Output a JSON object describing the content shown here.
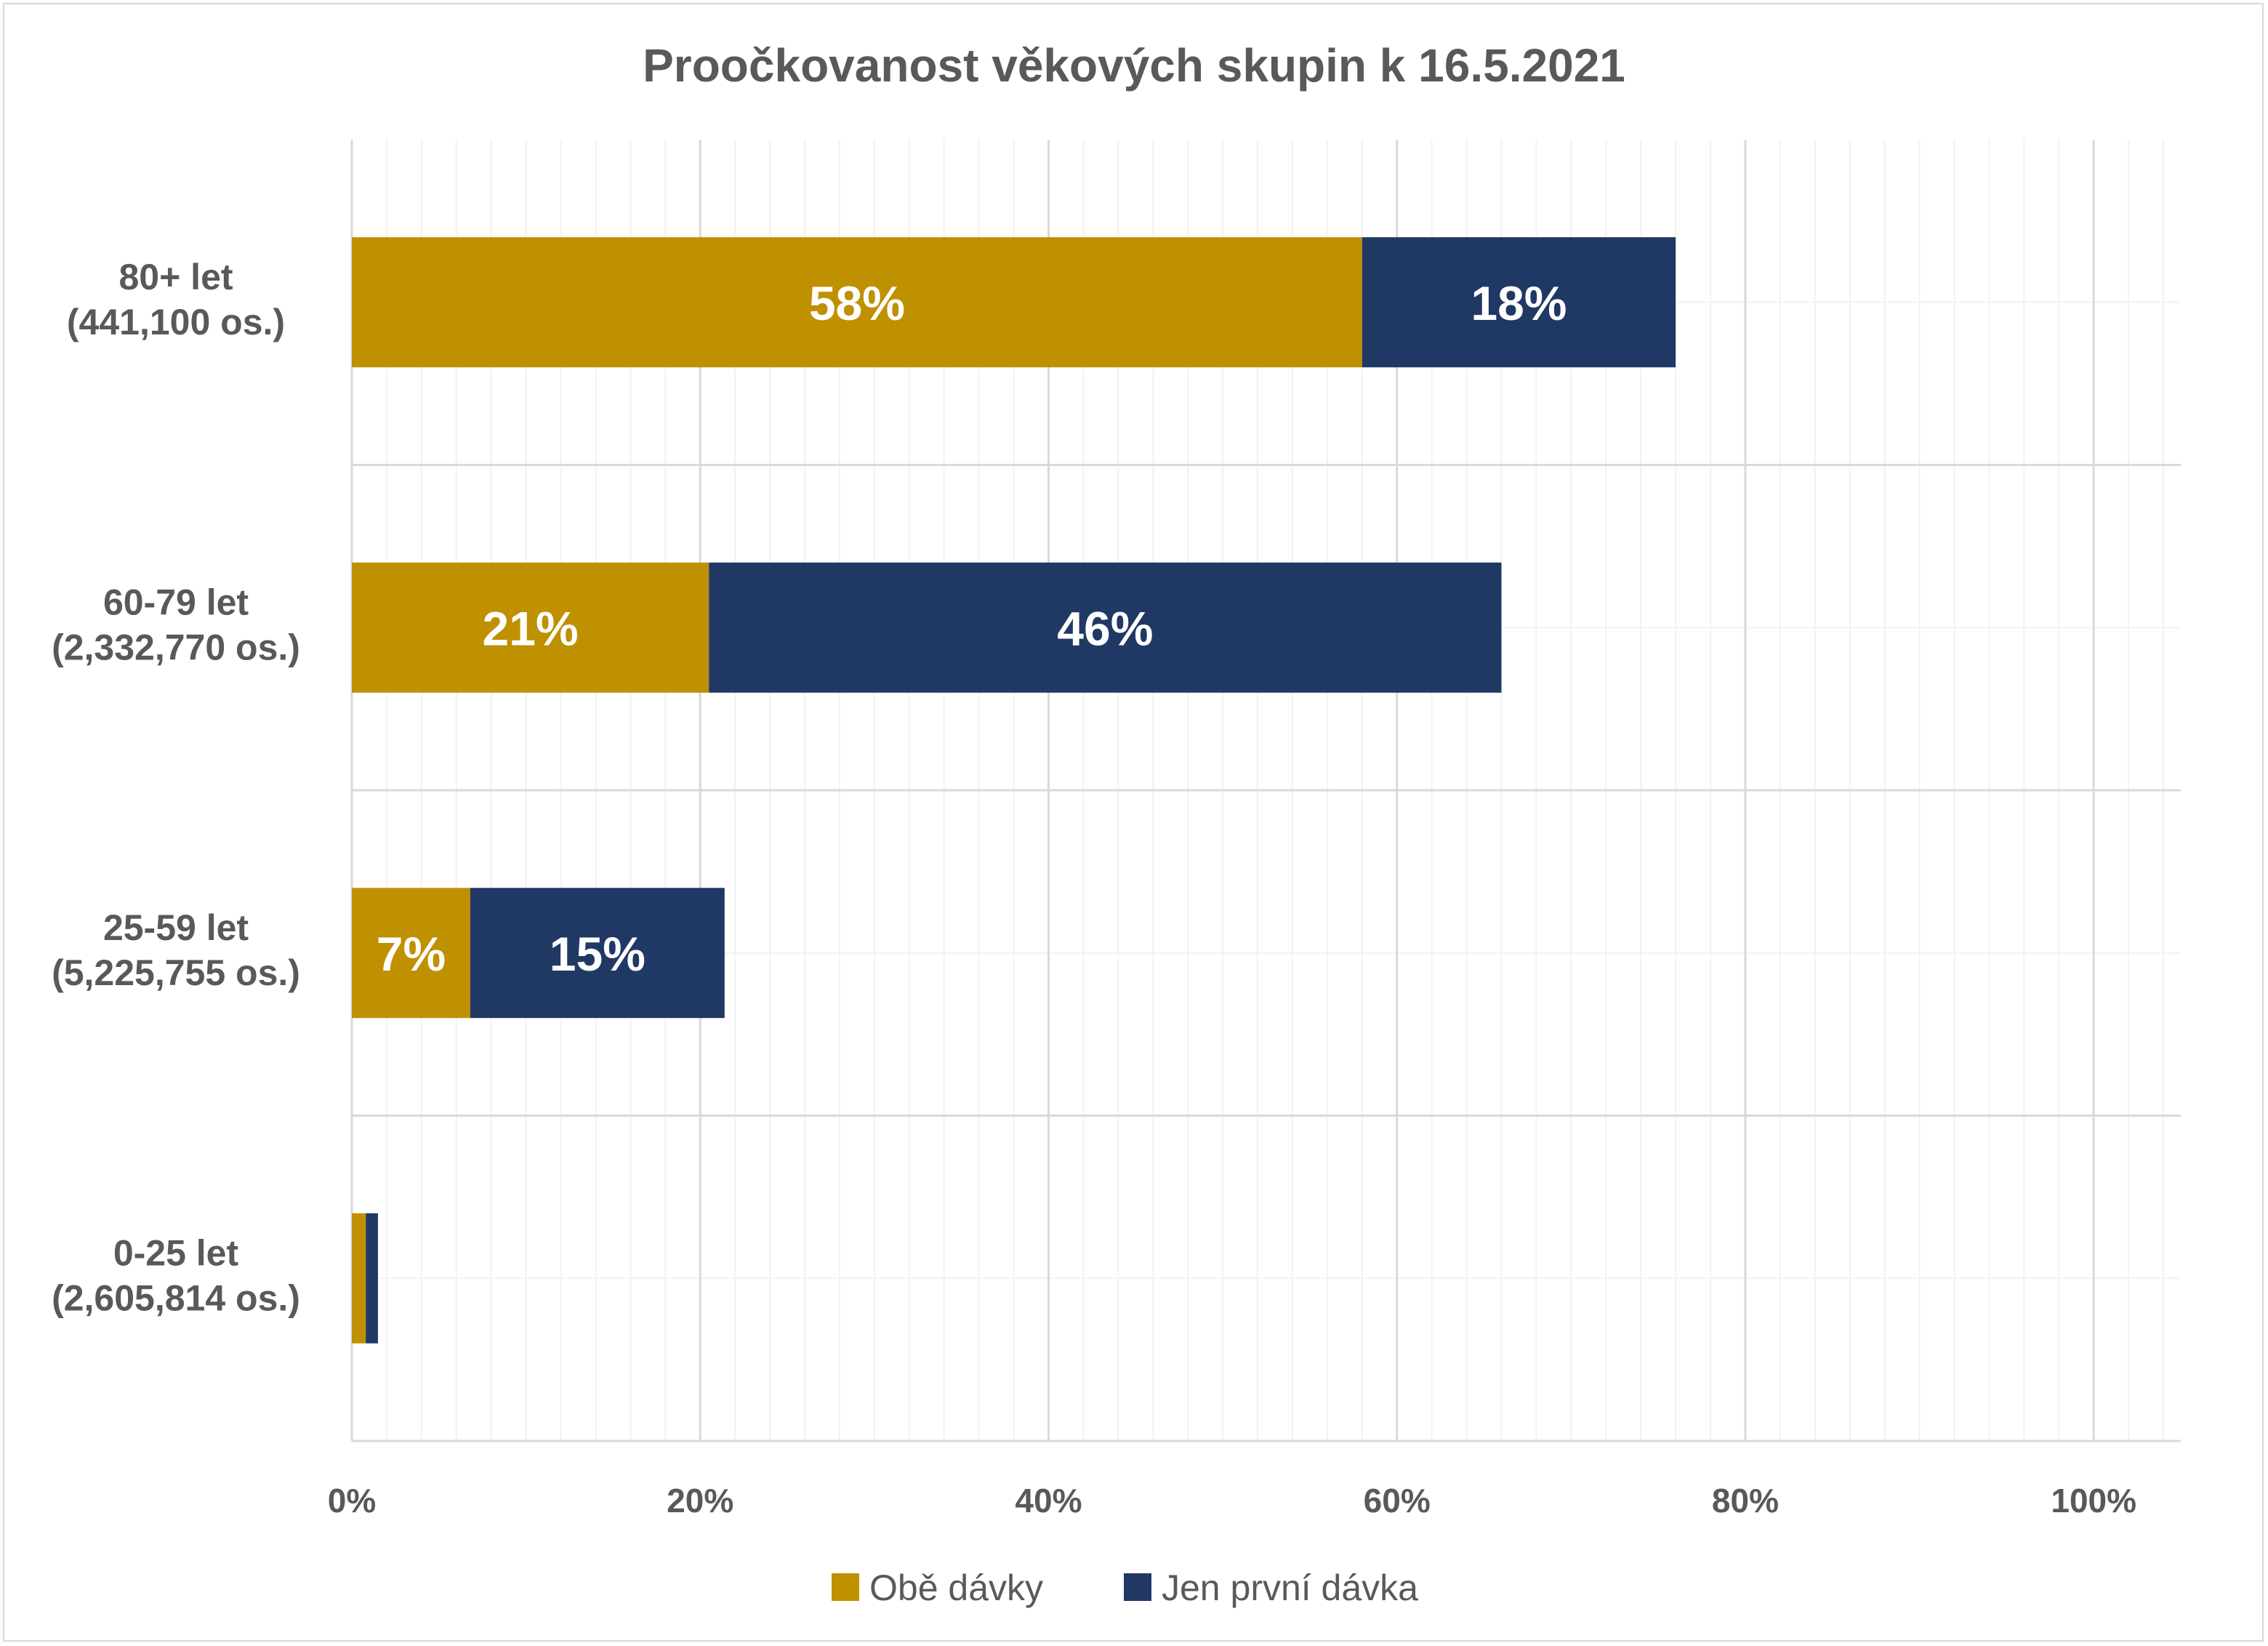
{
  "chart_data": {
    "type": "bar",
    "orientation": "horizontal",
    "stacked": true,
    "title": "Proočkovanost věkových skupin k 16.5.2021",
    "categories": [
      [
        "80+ let",
        "(441,100 os.)"
      ],
      [
        "60-79 let",
        "(2,332,770 os.)"
      ],
      [
        "25-59 let",
        "(5,225,755 os.)"
      ],
      [
        "0-25 let",
        "(2,605,814 os.)"
      ]
    ],
    "series": [
      {
        "name": "Obě dávky",
        "color": "#BF9000",
        "values": [
          0.58,
          0.205,
          0.068,
          0.008
        ],
        "labels": [
          "58%",
          "21%",
          "7%",
          ""
        ]
      },
      {
        "name": "Jen první dávka",
        "color": "#203864",
        "values": [
          0.18,
          0.455,
          0.146,
          0.007
        ],
        "labels": [
          "18%",
          "46%",
          "15%",
          ""
        ]
      }
    ],
    "xlim": [
      0,
      1.05
    ],
    "xticks": [
      0,
      0.2,
      0.4,
      0.6,
      0.8,
      1.0
    ],
    "xtick_labels": [
      "0%",
      "20%",
      "40%",
      "60%",
      "80%",
      "100%"
    ],
    "grid": "major and minor vertical",
    "legend_position": "bottom"
  }
}
